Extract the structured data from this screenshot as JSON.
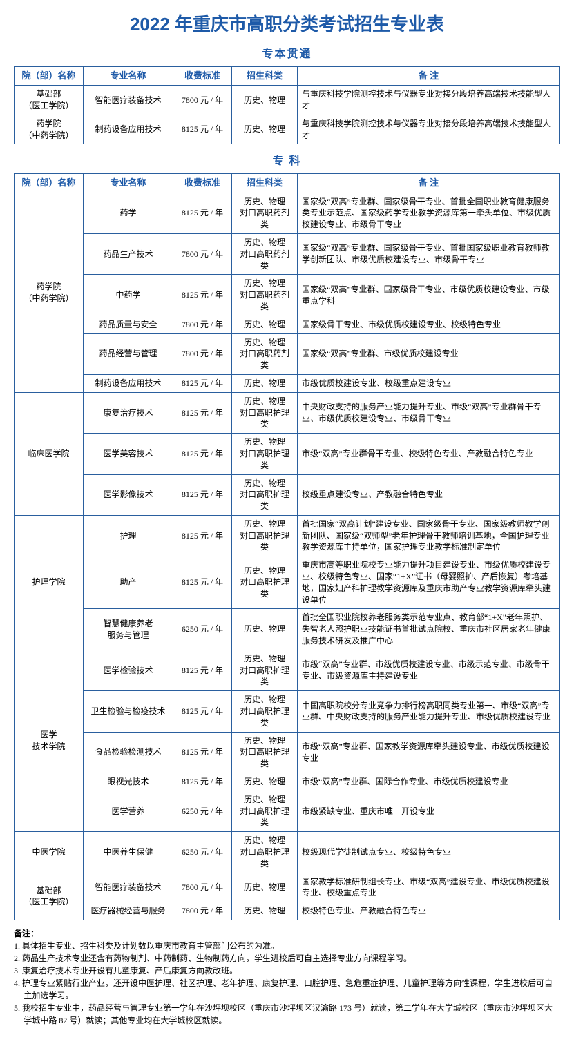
{
  "title": "2022 年重庆市高职分类考试招生专业表",
  "section1_title": "专本贯通",
  "section2_title": "专 科",
  "headers": {
    "dept": "院（部）名称",
    "major": "专业名称",
    "fee": "收费标准",
    "subject": "招生科类",
    "note": "备 注"
  },
  "table1": [
    {
      "dept": "基础部\n（医工学院）",
      "major": "智能医疗装备技术",
      "fee": "7800 元 / 年",
      "subject": "历史、物理",
      "note": "与重庆科技学院测控技术与仪器专业对接分段培养高端技术技能型人才"
    },
    {
      "dept": "药学院\n（中药学院）",
      "major": "制药设备应用技术",
      "fee": "8125 元 / 年",
      "subject": "历史、物理",
      "note": "与重庆科技学院测控技术与仪器专业对接分段培养高端技术技能型人才"
    }
  ],
  "table2": [
    {
      "dept": "药学院\n（中药学院）",
      "rowspan": 6,
      "major": "药学",
      "fee": "8125 元 / 年",
      "subject": "历史、物理\n对口高职药剂类",
      "note": "国家级“双高”专业群、国家级骨干专业、首批全国职业教育健康服务类专业示范点、国家级药学专业教学资源库第一牵头单位、市级优质校建设专业、市级骨干专业"
    },
    {
      "major": "药品生产技术",
      "fee": "7800 元 / 年",
      "subject": "历史、物理\n对口高职药剂类",
      "note": "国家级“双高”专业群、国家级骨干专业、首批国家级职业教育教师教学创新团队、市级优质校建设专业、市级骨干专业"
    },
    {
      "major": "中药学",
      "fee": "8125 元 / 年",
      "subject": "历史、物理\n对口高职药剂类",
      "note": "国家级“双高”专业群、国家级骨干专业、市级优质校建设专业、市级重点学科"
    },
    {
      "major": "药品质量与安全",
      "fee": "7800 元 / 年",
      "subject": "历史、物理",
      "note": "国家级骨干专业、市级优质校建设专业、校级特色专业"
    },
    {
      "major": "药品经营与管理",
      "fee": "7800 元 / 年",
      "subject": "历史、物理\n对口高职药剂类",
      "note": "国家级“双高”专业群、市级优质校建设专业"
    },
    {
      "major": "制药设备应用技术",
      "fee": "8125 元 / 年",
      "subject": "历史、物理",
      "note": "市级优质校建设专业、校级重点建设专业"
    },
    {
      "dept": "临床医学院",
      "rowspan": 3,
      "major": "康复治疗技术",
      "fee": "8125 元 / 年",
      "subject": "历史、物理\n对口高职护理类",
      "note": "中央财政支持的服务产业能力提升专业、市级“双高”专业群骨干专业、市级优质校建设专业、市级骨干专业"
    },
    {
      "major": "医学美容技术",
      "fee": "8125 元 / 年",
      "subject": "历史、物理\n对口高职护理类",
      "note": "市级“双高”专业群骨干专业、校级特色专业、产教融合特色专业"
    },
    {
      "major": "医学影像技术",
      "fee": "8125 元 / 年",
      "subject": "历史、物理\n对口高职护理类",
      "note": "校级重点建设专业、产教融合特色专业"
    },
    {
      "dept": "护理学院",
      "rowspan": 3,
      "major": "护理",
      "fee": "8125 元 / 年",
      "subject": "历史、物理\n对口高职护理类",
      "note": "首批国家“双高计划”建设专业、国家级骨干专业、国家级教师教学创新团队、国家级“双师型”老年护理骨干教师培训基地，全国护理专业教学资源库主持单位，国家护理专业教学标准制定单位"
    },
    {
      "major": "助产",
      "fee": "8125 元 / 年",
      "subject": "历史、物理\n对口高职护理类",
      "note": "重庆市高等职业院校专业能力提升项目建设专业、市级优质校建设专业、校级特色专业、国家“1+X”证书（母婴照护、产后恢复）考培基地，国家妇产科护理教学资源库及重庆市助产专业教学资源库牵头建设单位"
    },
    {
      "major": "智慧健康养老\n服务与管理",
      "fee": "6250 元 / 年",
      "subject": "历史、物理",
      "note": "首批全国职业院校养老服务类示范专业点、教育部“1+X”老年照护、失智老人照护职业技能证书首批试点院校、重庆市社区居家老年健康服务技术研发及推广中心"
    },
    {
      "dept": "医学\n技术学院",
      "rowspan": 5,
      "major": "医学检验技术",
      "fee": "8125 元 / 年",
      "subject": "历史、物理\n对口高职护理类",
      "note": "市级“双高”专业群、市级优质校建设专业、市级示范专业、市级骨干专业、市级资源库主持建设专业"
    },
    {
      "major": "卫生检验与检疫技术",
      "fee": "8125 元 / 年",
      "subject": "历史、物理\n对口高职护理类",
      "note": "中国高职院校分专业竞争力排行榜高职同类专业第一、市级“双高”专业群、中央财政支持的服务产业能力提升专业、市级优质校建设专业"
    },
    {
      "major": "食品检验检测技术",
      "fee": "8125 元 / 年",
      "subject": "历史、物理\n对口高职护理类",
      "note": "市级“双高”专业群、国家教学资源库牵头建设专业、市级优质校建设专业"
    },
    {
      "major": "眼视光技术",
      "fee": "8125 元 / 年",
      "subject": "历史、物理",
      "note": "市级“双高”专业群、国际合作专业、市级优质校建设专业"
    },
    {
      "major": "医学营养",
      "fee": "6250 元 / 年",
      "subject": "历史、物理\n对口高职护理类",
      "note": "市级紧缺专业、重庆市唯一开设专业"
    },
    {
      "dept": "中医学院",
      "rowspan": 1,
      "major": "中医养生保健",
      "fee": "6250 元 / 年",
      "subject": "历史、物理\n对口高职护理类",
      "note": "校级现代学徒制试点专业、校级特色专业"
    },
    {
      "dept": "基础部\n（医工学院）",
      "rowspan": 2,
      "major": "智能医疗装备技术",
      "fee": "7800 元 / 年",
      "subject": "历史、物理",
      "note": "国家教学标准研制组长专业、市级“双高”建设专业、市级优质校建设专业、校级重点专业"
    },
    {
      "major": "医疗器械经营与服务",
      "fee": "7800 元 / 年",
      "subject": "历史、物理",
      "note": "校级特色专业、产教融合特色专业"
    }
  ],
  "notes_title": "备注：",
  "notes": [
    "1. 具体招生专业、招生科类及计划数以重庆市教育主管部门公布的为准。",
    "2. 药品生产技术专业还含有药物制剂、中药制药、生物制药方向，学生进校后可自主选择专业方向课程学习。",
    "3. 康复治疗技术专业开设有儿童康复、产后康复方向教改班。",
    "4. 护理专业紧贴行业产业，还开设中医护理、社区护理、老年护理、康复护理、口腔护理、急危重症护理、儿童护理等方向性课程，学生进校后可自主加选学习。",
    "5. 我校招生专业中，药品经营与管理专业第一学年在沙坪坝校区（重庆市沙坪坝区汉渝路 173 号）就读，第二学年在大学城校区（重庆市沙坪坝区大学城中路 82 号）就读；其他专业均在大学城校区就读。"
  ]
}
